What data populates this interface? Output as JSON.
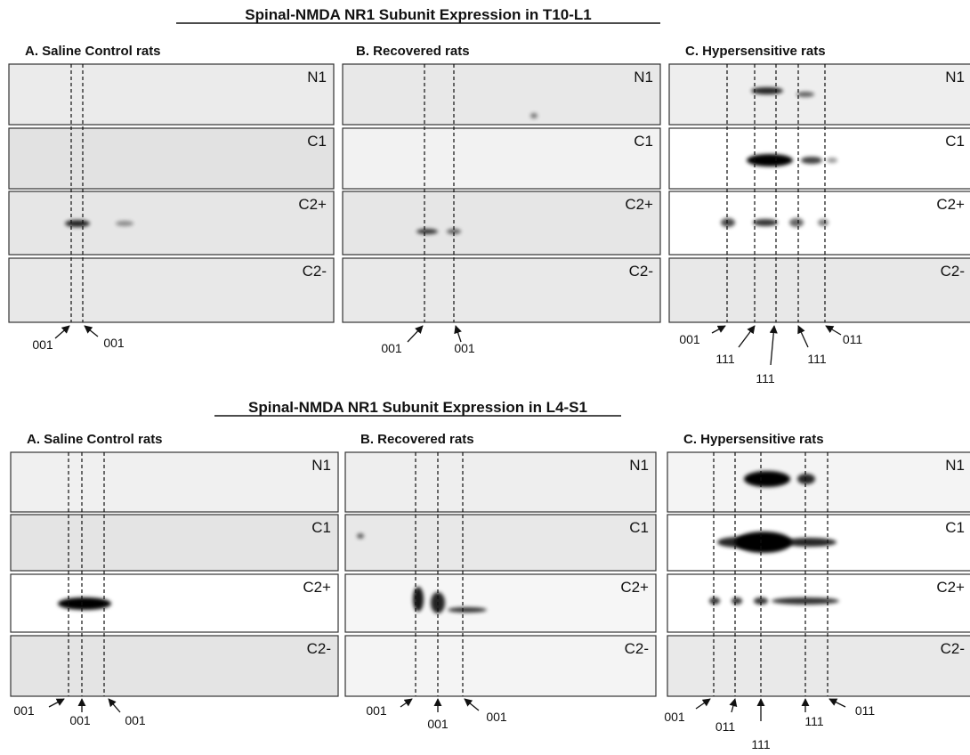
{
  "sections": [
    {
      "title": "Spinal-NMDA NR1 Subunit Expression in T10-L1",
      "groups": [
        {
          "label": "A.  Saline Control rats",
          "lanes": [
            "N1",
            "C1",
            "C2+",
            "C2-"
          ],
          "markers": [
            "001",
            "001"
          ]
        },
        {
          "label": "B.  Recovered rats",
          "lanes": [
            "N1",
            "C1",
            "C2+",
            "C2-"
          ],
          "markers": [
            "001",
            "001"
          ]
        },
        {
          "label": "C.  Hypersensitive  rats",
          "lanes": [
            "N1",
            "C1",
            "C2+",
            "C2-"
          ],
          "markers": [
            "001",
            "111",
            "111",
            "111",
            "011"
          ]
        }
      ]
    },
    {
      "title": "Spinal-NMDA NR1 Subunit Expression in L4-S1",
      "groups": [
        {
          "label": "A.  Saline Control rats",
          "lanes": [
            "N1",
            "C1",
            "C2+",
            "C2-"
          ],
          "markers": [
            "001",
            "001",
            "001"
          ]
        },
        {
          "label": "B.  Recovered rats",
          "lanes": [
            "N1",
            "C1",
            "C2+",
            "C2-"
          ],
          "markers": [
            "001",
            "001",
            "001"
          ]
        },
        {
          "label": "C.  Hypersensitive  rats",
          "lanes": [
            "N1",
            "C1",
            "C2+",
            "C2-"
          ],
          "markers": [
            "001",
            "011",
            "111",
            "111",
            "011"
          ]
        }
      ]
    }
  ]
}
